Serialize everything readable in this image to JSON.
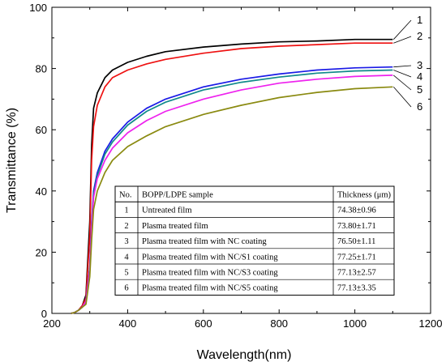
{
  "chart_data": {
    "type": "line",
    "xlabel": "Wavelength(nm)",
    "ylabel": "Transmittance (%)",
    "xlim": [
      200,
      1200
    ],
    "ylim": [
      0,
      100
    ],
    "x_ticks": [
      "200",
      "400",
      "600",
      "800",
      "1000",
      "1200"
    ],
    "y_ticks": [
      "0",
      "20",
      "40",
      "60",
      "80",
      "100"
    ],
    "grid": false,
    "x": [
      250,
      260,
      270,
      280,
      290,
      300,
      305,
      310,
      320,
      340,
      360,
      400,
      450,
      500,
      600,
      700,
      800,
      900,
      1000,
      1100
    ],
    "series": [
      {
        "name": "1",
        "color": "#000000",
        "values": [
          0,
          0.3,
          1.0,
          2.5,
          6,
          30,
          55,
          67,
          72,
          77,
          79.5,
          82,
          84,
          85.5,
          87,
          88,
          88.7,
          89,
          89.5,
          89.5
        ]
      },
      {
        "name": "2",
        "color": "#ee1111",
        "values": [
          0,
          0.3,
          1.0,
          2.5,
          5,
          25,
          50,
          61,
          68,
          74,
          77,
          79.5,
          81.5,
          83,
          85,
          86.5,
          87.3,
          87.8,
          88.3,
          88.3
        ]
      },
      {
        "name": "3",
        "color": "#1a1ae6",
        "values": [
          0,
          0.3,
          1.0,
          2.0,
          4,
          15,
          30,
          40,
          46,
          53,
          57,
          62.5,
          67,
          70,
          74,
          76.5,
          78.2,
          79.5,
          80.2,
          80.5
        ]
      },
      {
        "name": "4",
        "color": "#118a8a",
        "values": [
          0,
          0.3,
          1.0,
          2.0,
          4,
          15,
          29,
          39,
          45,
          52,
          56,
          61.5,
          66,
          69,
          73,
          75.5,
          77.2,
          78.5,
          79.2,
          79.5
        ]
      },
      {
        "name": "5",
        "color": "#ee22ee",
        "values": [
          0,
          0.3,
          1.0,
          2.0,
          4,
          14,
          28,
          38,
          44,
          50,
          54,
          59,
          63,
          66,
          70,
          73,
          75.2,
          76.5,
          77.4,
          77.8
        ]
      },
      {
        "name": "6",
        "color": "#8a8a10",
        "values": [
          0,
          0.3,
          1.0,
          2.0,
          3,
          12,
          24,
          34,
          40,
          46,
          50,
          54.5,
          58,
          61,
          65,
          68,
          70.5,
          72.2,
          73.4,
          74.0
        ]
      }
    ],
    "table": {
      "headers": [
        "No.",
        "BOPP/LDPE sample",
        "Thickness (μm)"
      ],
      "rows": [
        [
          "1",
          "Untreated film",
          "74.38±0.96"
        ],
        [
          "2",
          "Plasma treated film",
          "73.80±1.71"
        ],
        [
          "3",
          "Plasma treated film with NC coating",
          "76.50±1.11"
        ],
        [
          "4",
          "Plasma treated film with NC/S1 coating",
          "77.25±1.71"
        ],
        [
          "5",
          "Plasma treated film with NC/S3 coating",
          "77.13±2.57"
        ],
        [
          "6",
          "Plasma treated film with NC/S5 coating",
          "77.13±3.35"
        ]
      ]
    }
  }
}
